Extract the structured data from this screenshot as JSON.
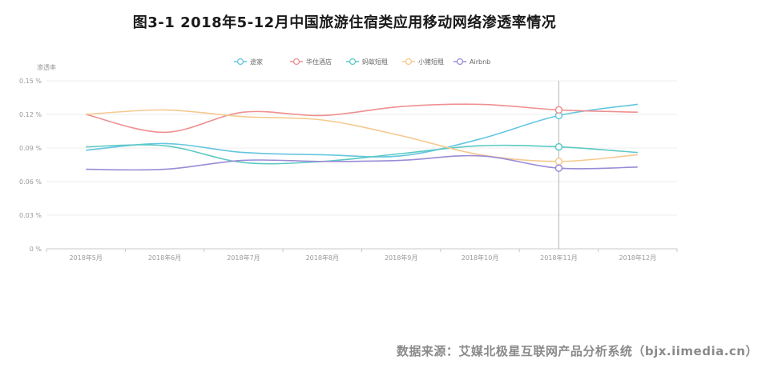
{
  "title": "图3-1 2018年5-12月中国旅游住宿类应用移动网络渗透率情况",
  "source": "数据来源：艾媒北极星互联网产品分析系统（bjx.iimedia.cn）",
  "chart_data": {
    "type": "line",
    "ylabel": "渗透率",
    "xlabel": "",
    "ylim": [
      0,
      0.15
    ],
    "yticks": [
      "0 %",
      "0.03 %",
      "0.06 %",
      "0.09 %",
      "0.12 %",
      "0.15 %"
    ],
    "categories": [
      "2018年5月",
      "2018年6月",
      "2018年7月",
      "2018年8月",
      "2018年9月",
      "2018年10月",
      "2018年11月",
      "2018年12月"
    ],
    "legend_position": "top-center",
    "grid": "horizontal",
    "highlight_category": "2018年11月",
    "series": [
      {
        "name": "途家",
        "color": "#63c6e0",
        "values": [
          0.088,
          0.094,
          0.086,
          0.084,
          0.083,
          0.098,
          0.119,
          0.129
        ]
      },
      {
        "name": "华住酒店",
        "color": "#ef8f8f",
        "values": [
          0.12,
          0.104,
          0.122,
          0.119,
          0.127,
          0.129,
          0.124,
          0.122
        ]
      },
      {
        "name": "蚂蚁短租",
        "color": "#5cc9c3",
        "values": [
          0.091,
          0.092,
          0.077,
          0.078,
          0.085,
          0.092,
          0.091,
          0.086
        ]
      },
      {
        "name": "小猪短租",
        "color": "#f5c98f",
        "values": [
          0.12,
          0.124,
          0.118,
          0.115,
          0.101,
          0.084,
          0.078,
          0.084
        ]
      },
      {
        "name": "Airbnb",
        "color": "#9a8bd6",
        "values": [
          0.071,
          0.071,
          0.079,
          0.078,
          0.079,
          0.083,
          0.072,
          0.073
        ]
      }
    ]
  }
}
